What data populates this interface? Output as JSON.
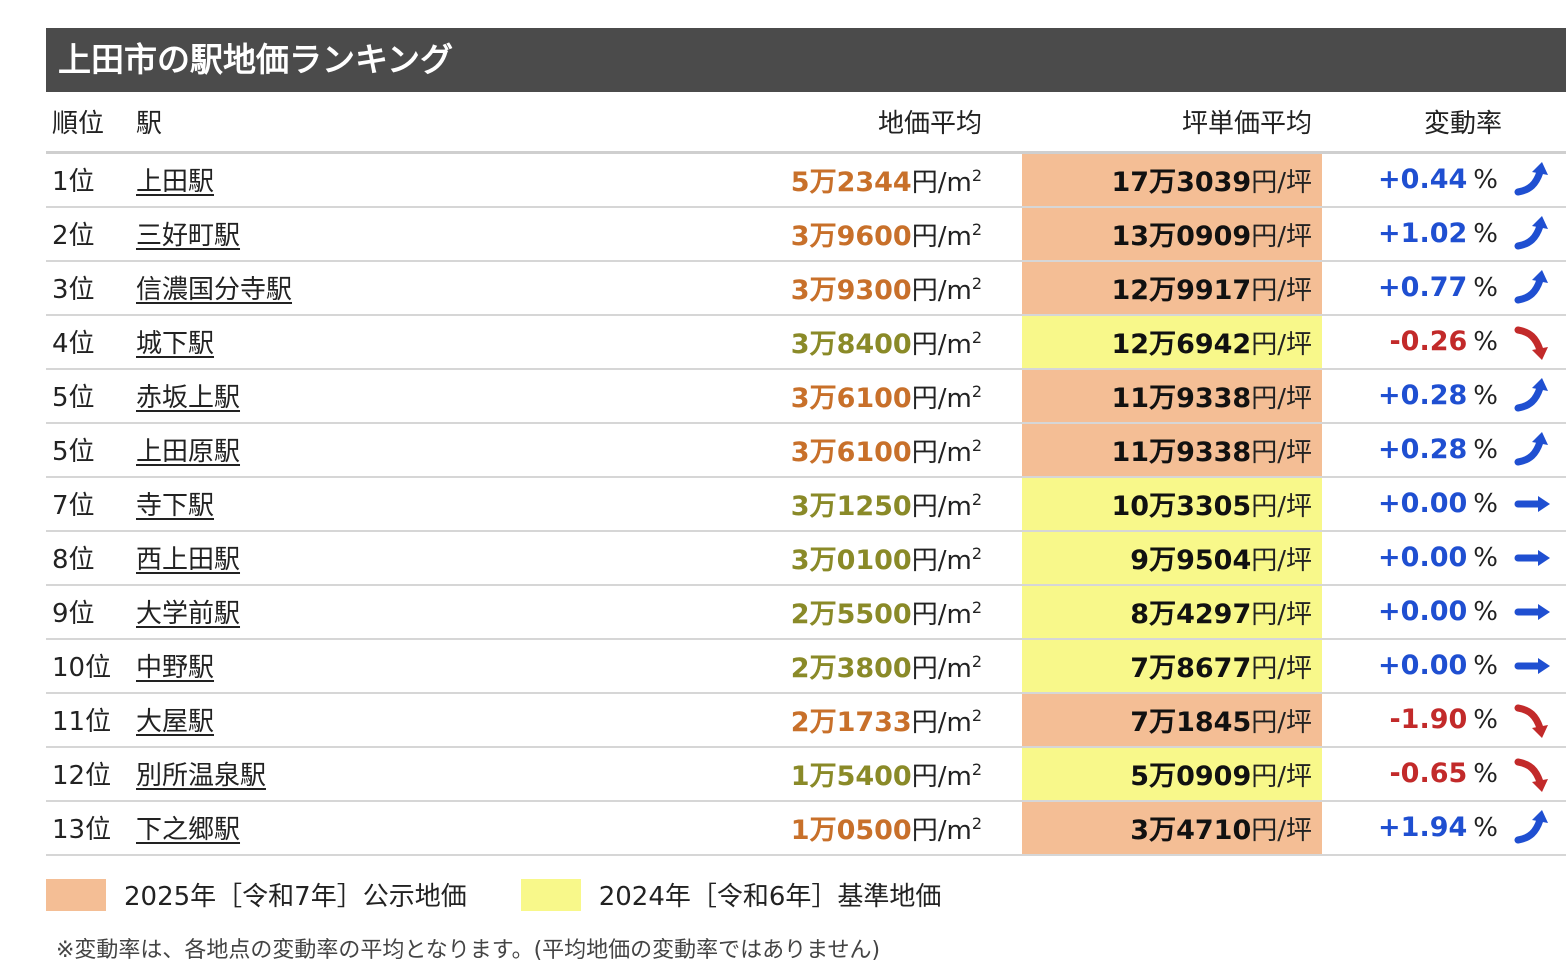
{
  "title": "上田市の駅地価ランキング",
  "headers": {
    "rank": "順位",
    "station": "駅",
    "price": "地価平均",
    "tsubo": "坪単価平均",
    "rate": "変動率"
  },
  "units": {
    "price": "円/m",
    "price_sup": "2",
    "tsubo": "円/坪",
    "rate": "%"
  },
  "colors": {
    "koji_bg": "#f4be95",
    "kijun_bg": "#f8f88a",
    "koji_text": "#c8702a",
    "kijun_text": "#8a8a28",
    "up": "#1f4fd1",
    "down": "#c22a2a"
  },
  "rows": [
    {
      "rank": "1位",
      "station": "上田駅",
      "price": "5万2344",
      "tsubo": "17万3039",
      "rate": "+0.44",
      "type": "koji",
      "trend": "up"
    },
    {
      "rank": "2位",
      "station": "三好町駅",
      "price": "3万9600",
      "tsubo": "13万0909",
      "rate": "+1.02",
      "type": "koji",
      "trend": "up"
    },
    {
      "rank": "3位",
      "station": "信濃国分寺駅",
      "price": "3万9300",
      "tsubo": "12万9917",
      "rate": "+0.77",
      "type": "koji",
      "trend": "up"
    },
    {
      "rank": "4位",
      "station": "城下駅",
      "price": "3万8400",
      "tsubo": "12万6942",
      "rate": "-0.26",
      "type": "kijun",
      "trend": "down"
    },
    {
      "rank": "5位",
      "station": "赤坂上駅",
      "price": "3万6100",
      "tsubo": "11万9338",
      "rate": "+0.28",
      "type": "koji",
      "trend": "up"
    },
    {
      "rank": "5位",
      "station": "上田原駅",
      "price": "3万6100",
      "tsubo": "11万9338",
      "rate": "+0.28",
      "type": "koji",
      "trend": "up"
    },
    {
      "rank": "7位",
      "station": "寺下駅",
      "price": "3万1250",
      "tsubo": "10万3305",
      "rate": "+0.00",
      "type": "kijun",
      "trend": "flat"
    },
    {
      "rank": "8位",
      "station": "西上田駅",
      "price": "3万0100",
      "tsubo": "9万9504",
      "rate": "+0.00",
      "type": "kijun",
      "trend": "flat"
    },
    {
      "rank": "9位",
      "station": "大学前駅",
      "price": "2万5500",
      "tsubo": "8万4297",
      "rate": "+0.00",
      "type": "kijun",
      "trend": "flat"
    },
    {
      "rank": "10位",
      "station": "中野駅",
      "price": "2万3800",
      "tsubo": "7万8677",
      "rate": "+0.00",
      "type": "kijun",
      "trend": "flat"
    },
    {
      "rank": "11位",
      "station": "大屋駅",
      "price": "2万1733",
      "tsubo": "7万1845",
      "rate": "-1.90",
      "type": "koji",
      "trend": "down"
    },
    {
      "rank": "12位",
      "station": "別所温泉駅",
      "price": "1万5400",
      "tsubo": "5万0909",
      "rate": "-0.65",
      "type": "kijun",
      "trend": "down"
    },
    {
      "rank": "13位",
      "station": "下之郷駅",
      "price": "1万0500",
      "tsubo": "3万4710",
      "rate": "+1.94",
      "type": "koji",
      "trend": "up"
    }
  ],
  "legend": {
    "koji": "2025年［令和7年］公示地価",
    "kijun": "2024年［令和6年］基準地価"
  },
  "note": "※変動率は、各地点の変動率の平均となります。(平均地価の変動率ではありません)"
}
